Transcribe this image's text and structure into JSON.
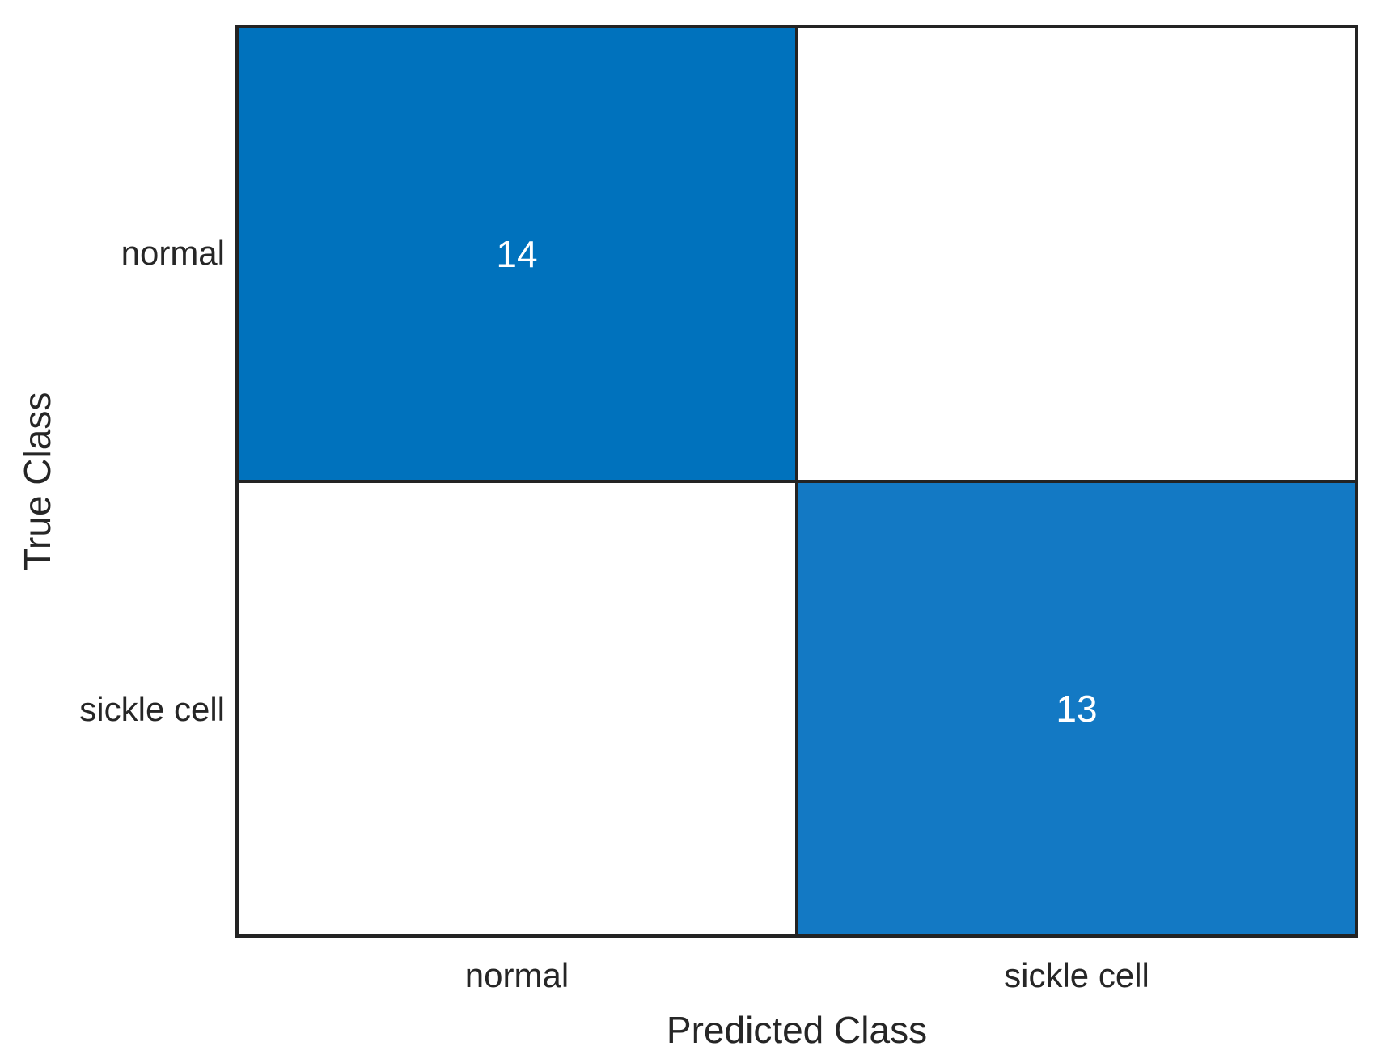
{
  "chart_data": {
    "type": "heatmap",
    "subtype": "confusion-matrix",
    "title": "",
    "xlabel": "Predicted Class",
    "ylabel": "True Class",
    "categories": [
      "normal",
      "sickle cell"
    ],
    "matrix": [
      [
        14,
        0
      ],
      [
        0,
        13
      ]
    ],
    "display": [
      [
        "14",
        ""
      ],
      [
        "",
        "13"
      ]
    ],
    "cell_colors": [
      [
        "#0072BD",
        "#FFFFFF"
      ],
      [
        "#FFFFFF",
        "#1379C4"
      ]
    ],
    "cell_text_colors": [
      [
        "#FFFFFF",
        "#262626"
      ],
      [
        "#262626",
        "#FFFFFF"
      ]
    ],
    "colors": {
      "diagonal_blue_max": "#0072BD",
      "diagonal_blue_lighter": "#1379C4",
      "off_diagonal": "#FFFFFF",
      "grid_border": "#232323",
      "axis_text": "#262626",
      "background": "#FFFFFF"
    },
    "layout": {
      "grid": "on",
      "legend": "none",
      "rows": 2,
      "cols": 2
    }
  }
}
